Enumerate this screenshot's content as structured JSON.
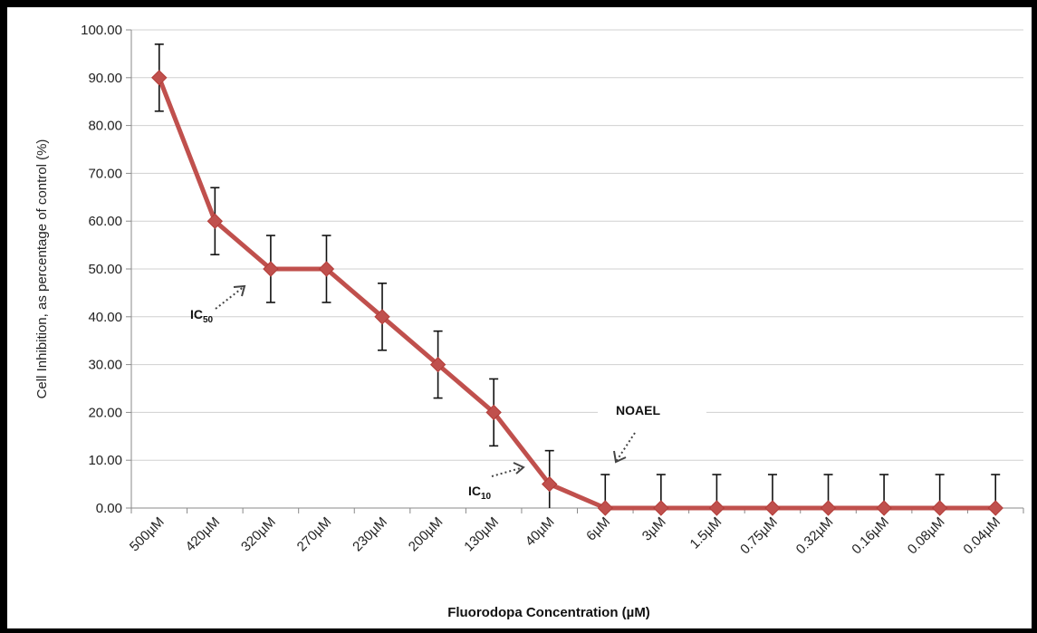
{
  "chart_data": {
    "type": "line",
    "categories": [
      "500µM",
      "420µM",
      "320µM",
      "270µM",
      "230µM",
      "200µM",
      "130µM",
      "40µM",
      "6µM",
      "3µM",
      "1.5µM",
      "0.75µM",
      "0.32µM",
      "0.16µM",
      "0.08µM",
      "0.04µM"
    ],
    "series": [
      {
        "values": [
          90,
          60,
          50,
          50,
          40,
          30,
          20,
          5,
          0,
          0,
          0,
          0,
          0,
          0,
          0,
          0
        ],
        "error": [
          7,
          7,
          7,
          7,
          7,
          7,
          7,
          7,
          7,
          7,
          7,
          7,
          7,
          7,
          7,
          7
        ]
      }
    ],
    "ylim": [
      0,
      100
    ],
    "yticks": [
      "0.00",
      "10.00",
      "20.00",
      "30.00",
      "40.00",
      "50.00",
      "60.00",
      "70.00",
      "80.00",
      "90.00",
      "100.00"
    ],
    "ylabel": "Cell Inhibition, as percentage of control  (%)",
    "xlabel": "Fluorodopa Concentration (µM)",
    "grid": true,
    "line_color": "#c0504d",
    "annotations": {
      "ic50": {
        "text": "IC",
        "sub": "50"
      },
      "ic10": {
        "text": "IC",
        "sub": "10"
      },
      "noael": {
        "text": "NOAEL"
      }
    }
  }
}
